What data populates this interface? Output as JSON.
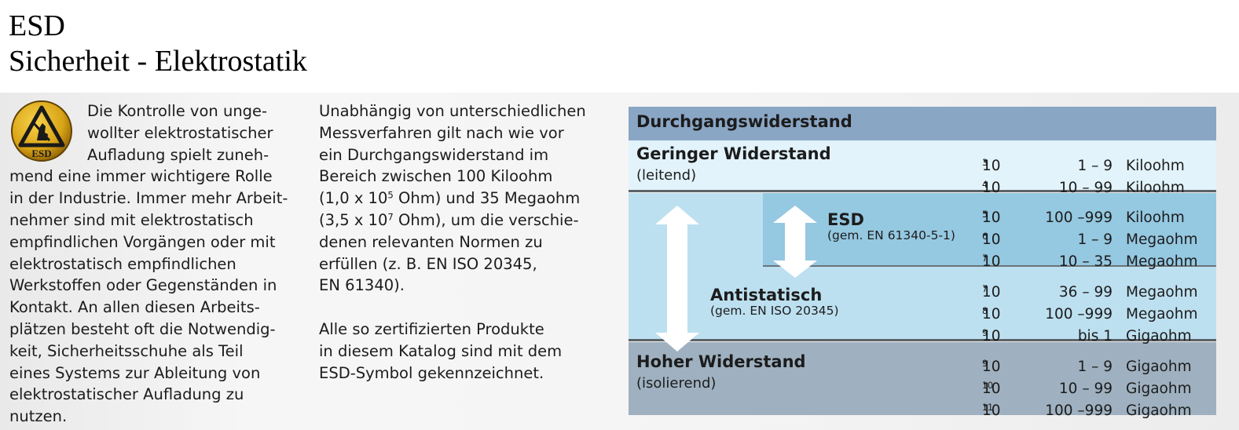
{
  "header": {
    "title_line1": "ESD",
    "title_line2": "Sicherheit - Elektrostatik"
  },
  "logo": {
    "label": "ESD",
    "icon": "esd-warning-icon"
  },
  "column1": {
    "lines": [
      "Die Kontrolle von unge-",
      "wollter elektrostatischer",
      "Aufladung spielt zuneh-",
      "mend eine immer wichtigere Rolle",
      "in der Industrie. Immer mehr Arbeit-",
      "nehmer sind mit elektrostatisch",
      "empfindlichen Vorgängen oder mit",
      "elektrostatisch empfindlichen",
      "Werkstoffen oder Gegenständen in",
      "Kontakt. An allen diesen Arbeits-",
      "plätzen besteht oft die Notwendig-",
      "keit, Sicherheitsschuhe als Teil",
      "eines Systems zur Ableitung von",
      "elektrostatischer Aufladung zu",
      "nutzen."
    ]
  },
  "column2": {
    "l1": "Unabhängig von unterschiedlichen",
    "l2": "Messverfahren gilt nach wie vor",
    "l3": "ein Durchgangswiderstand im",
    "l4": "Bereich zwischen 100 Kiloohm",
    "l5a": "(1,0  x 10",
    "l5sup": "5",
    "l5b": " Ohm) und 35 Megaohm",
    "l6a": "(3,5 x 10",
    "l6sup": "7",
    "l6b": " Ohm), um die verschie-",
    "l7": "denen relevanten Normen zu",
    "l8": "erfüllen (z. B. EN ISO 20345,",
    "l9": "EN 61340).",
    "l11": "Alle so zertifizierten Produkte",
    "l12": "in diesem Katalog sind mit dem",
    "l13": "ESD-Symbol gekennzeichnet."
  },
  "table": {
    "header": "Durchgangswiderstand",
    "low": {
      "title": "Geringer Widerstand",
      "sub": "(leitend)"
    },
    "esd": {
      "title": "ESD",
      "sub": "(gem. EN 61340-5-1)"
    },
    "anti": {
      "title": "Antistatisch",
      "sub": "(gem. EN ISO 20345)"
    },
    "high": {
      "title": "Hoher Widerstand",
      "sub": "(isolierend)"
    },
    "rows": [
      {
        "base": "10",
        "exp": "3",
        "range": "1 –    9",
        "unit": "Kiloohm"
      },
      {
        "base": "10",
        "exp": "4",
        "range": "10 –  99",
        "unit": "Kiloohm"
      },
      {
        "base": "10",
        "exp": "5",
        "range": "100 –999",
        "unit": "Kiloohm"
      },
      {
        "base": "10",
        "exp": "6",
        "range": "1 –    9",
        "unit": "Megaohm"
      },
      {
        "base": "10",
        "exp": "7",
        "range": "10 –  35",
        "unit": "Megaohm"
      },
      {
        "base": "10",
        "exp": "7",
        "range": "36 –  99",
        "unit": "Megaohm"
      },
      {
        "base": "10",
        "exp": "8",
        "range": "100 –999",
        "unit": "Megaohm"
      },
      {
        "base": "10",
        "exp": "9",
        "range": "bis 1",
        "unit": "Gigaohm"
      },
      {
        "base": "10",
        "exp": "9",
        "range": "1 –    9",
        "unit": "Gigaohm"
      },
      {
        "base": "10",
        "exp": "10",
        "range": "10 –  99",
        "unit": "Gigaohm"
      },
      {
        "base": "10",
        "exp": "11",
        "range": "100 –999",
        "unit": "Gigaohm"
      }
    ],
    "colors": {
      "header": "#8aa6c5",
      "low": "#e2f3fb",
      "antistatic": "#bde0f0",
      "esd": "#95c8e1",
      "high": "#9fb1c0"
    }
  }
}
